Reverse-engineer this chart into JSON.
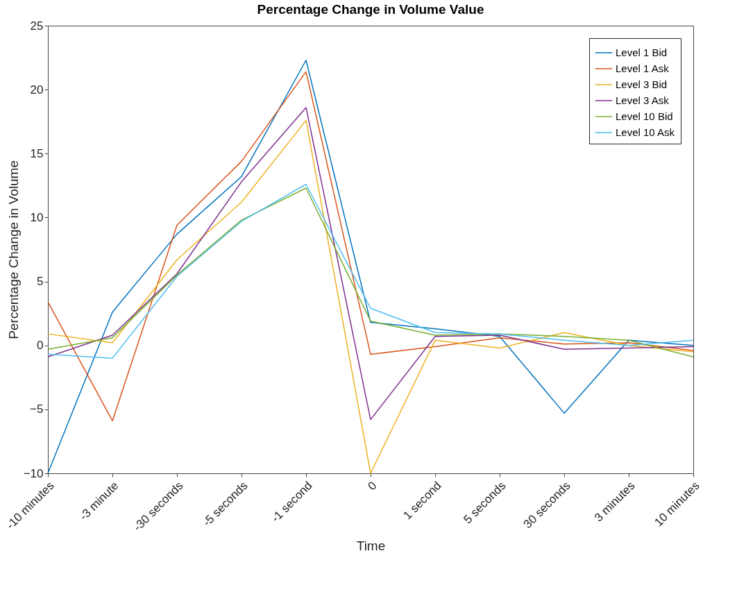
{
  "chart_data": {
    "type": "line",
    "title": "Percentage Change in Volume Value",
    "xlabel": "Time",
    "ylabel": "Percentage Change in Volume",
    "categories": [
      "-10 minutes",
      "-3 minute",
      "-30 seconds",
      "-5 seconds",
      "-1 second",
      "0",
      "1 second",
      "5 seconds",
      "30 seconds",
      "3 minutes",
      "10 minutes"
    ],
    "series": [
      {
        "name": "Level 1 Bid",
        "color": "#0072bd",
        "values": [
          -10,
          2.6,
          8.7,
          13.2,
          22.3,
          1.8,
          1.3,
          0.7,
          -5.3,
          0.4,
          0.0
        ]
      },
      {
        "name": "Level 1 Ask",
        "color": "#d95319",
        "values": [
          3.4,
          -5.9,
          9.4,
          14.4,
          21.4,
          -0.7,
          -0.1,
          0.6,
          0.1,
          0.2,
          -0.4
        ]
      },
      {
        "name": "Level 3 Bid",
        "color": "#edb120",
        "values": [
          0.9,
          0.2,
          6.7,
          11.2,
          17.6,
          -10,
          0.4,
          -0.2,
          1.0,
          0.0,
          -0.5
        ]
      },
      {
        "name": "Level 3 Ask",
        "color": "#7e2f8e",
        "values": [
          -0.9,
          0.8,
          5.6,
          12.8,
          18.6,
          -5.8,
          0.7,
          0.8,
          -0.3,
          -0.2,
          -0.1
        ]
      },
      {
        "name": "Level 10 Bid",
        "color": "#77ac30",
        "values": [
          -0.3,
          0.6,
          5.5,
          9.8,
          12.3,
          1.9,
          0.8,
          0.9,
          0.7,
          0.4,
          -0.9
        ]
      },
      {
        "name": "Level 10 Ask",
        "color": "#4dbeee",
        "values": [
          -0.7,
          -1.0,
          5.4,
          9.7,
          12.6,
          2.9,
          1.0,
          0.9,
          0.4,
          0.0,
          0.4
        ]
      }
    ],
    "ylim": [
      -10,
      25
    ],
    "yticks": [
      -10,
      -5,
      0,
      5,
      10,
      15,
      20,
      25
    ],
    "grid": false,
    "legend": "top right",
    "marker": "none",
    "line_style": "solid"
  }
}
